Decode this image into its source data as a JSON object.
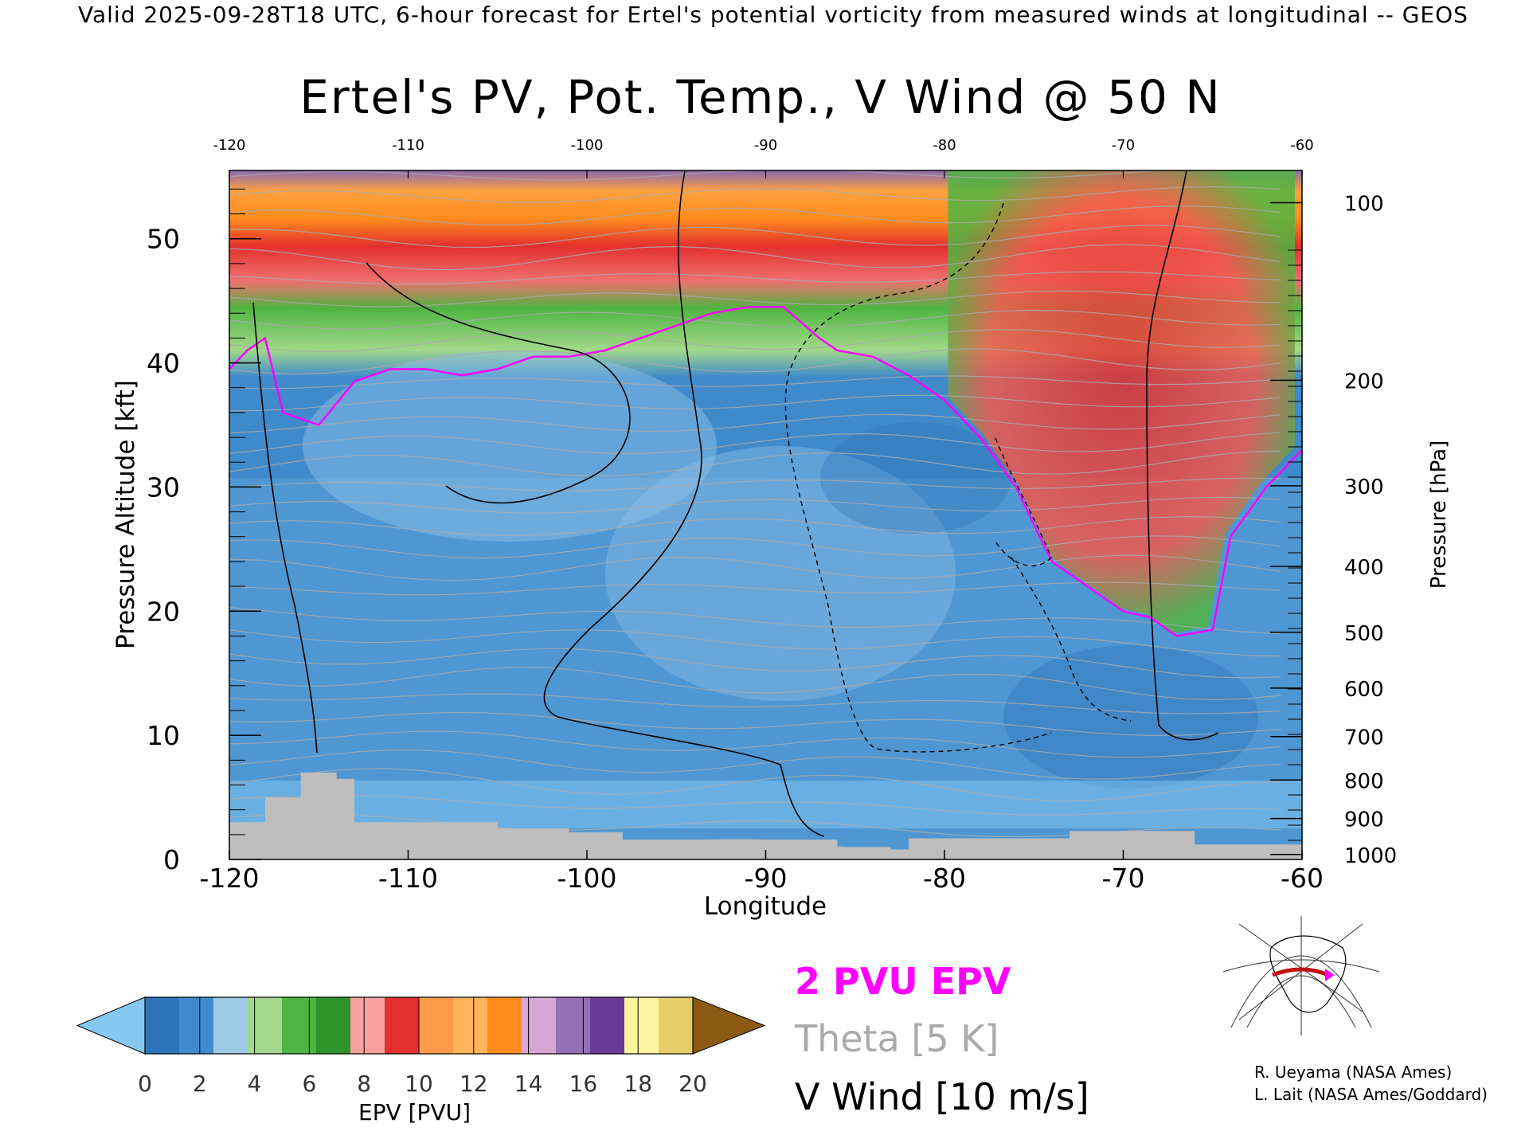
{
  "banner": "Valid 2025-09-28T18 UTC, 6-hour forecast for Ertel's potential vorticity from measured winds at longitudinal -- GEOS",
  "chart_data": {
    "type": "heatmap",
    "title": "Ertel's PV, Pot. Temp., V Wind @ 50 N",
    "xlabel": "Longitude",
    "ylabel": "Pressure Altitude [kft]",
    "y2label": "Pressure [hPa]",
    "xlim": [
      -120,
      -60
    ],
    "ylim": [
      0,
      55.5
    ],
    "x_ticks": [
      "-120",
      "-110",
      "-100",
      "-90",
      "-80",
      "-70",
      "-60"
    ],
    "top_ticks": [
      "-120",
      "-110",
      "-100",
      "-90",
      "-80",
      "-70",
      "-60"
    ],
    "y_ticks": [
      "0",
      "10",
      "20",
      "30",
      "40",
      "50"
    ],
    "pressure_ticks": [
      {
        "label": "100",
        "alt": 52.9
      },
      {
        "label": "200",
        "alt": 38.6
      },
      {
        "label": "300",
        "alt": 30.1
      },
      {
        "label": "400",
        "alt": 23.6
      },
      {
        "label": "500",
        "alt": 18.3
      },
      {
        "label": "600",
        "alt": 13.8
      },
      {
        "label": "700",
        "alt": 9.9
      },
      {
        "label": "800",
        "alt": 6.4
      },
      {
        "label": "900",
        "alt": 3.3
      },
      {
        "label": "1000",
        "alt": 0.4
      }
    ],
    "tropopause_2pvu_kft": [
      [
        -120,
        39.5
      ],
      [
        -119,
        41
      ],
      [
        -118,
        42
      ],
      [
        -117,
        36
      ],
      [
        -116,
        35.5
      ],
      [
        -115,
        35
      ],
      [
        -113,
        38.5
      ],
      [
        -111,
        39.5
      ],
      [
        -109,
        39.5
      ],
      [
        -107,
        39
      ],
      [
        -105,
        39.5
      ],
      [
        -103,
        40.5
      ],
      [
        -101,
        40.5
      ],
      [
        -99,
        41
      ],
      [
        -97,
        42
      ],
      [
        -95,
        43
      ],
      [
        -93,
        44
      ],
      [
        -91,
        44.5
      ],
      [
        -89,
        44.5
      ],
      [
        -87,
        42
      ],
      [
        -86,
        41
      ],
      [
        -84,
        40.5
      ],
      [
        -82,
        39
      ],
      [
        -80,
        37
      ],
      [
        -78,
        34
      ],
      [
        -76,
        30
      ],
      [
        -74,
        24
      ],
      [
        -72,
        22
      ],
      [
        -70,
        20
      ],
      [
        -68.5,
        19.5
      ],
      [
        -67,
        18
      ],
      [
        -65,
        18.5
      ],
      [
        -64,
        26
      ],
      [
        -62,
        30
      ],
      [
        -60,
        33
      ]
    ],
    "colorbar": {
      "title": "EPV [PVU]",
      "ticks": [
        "0",
        "2",
        "4",
        "6",
        "8",
        "10",
        "12",
        "14",
        "16",
        "18",
        "20"
      ],
      "colors": [
        "#86c8f2",
        "#2c73b8",
        "#3f8acb",
        "#9ccae6",
        "#a3d98a",
        "#4fb441",
        "#2e932b",
        "#f6a0a0",
        "#e2302e",
        "#ff9b4a",
        "#ffb45b",
        "#ff8c1c",
        "#d6a6d4",
        "#9370b5",
        "#6a3a98",
        "#fcf4a0",
        "#e8cc6a",
        "#8b5a14"
      ]
    }
  },
  "legend": {
    "epv_label": "2 PVU EPV",
    "theta_label": "Theta [5 K]",
    "vwind_label": "V Wind [10 m/s]"
  },
  "credits": {
    "line1": "R. Ueyama (NASA Ames)",
    "line2": "L. Lait (NASA Ames/Goddard)"
  },
  "colors": {
    "pv_contour": "#ff00ff",
    "theta_contour": "#aaaaaa",
    "terrain": "#bebebe",
    "wind_contour": "#000000"
  }
}
